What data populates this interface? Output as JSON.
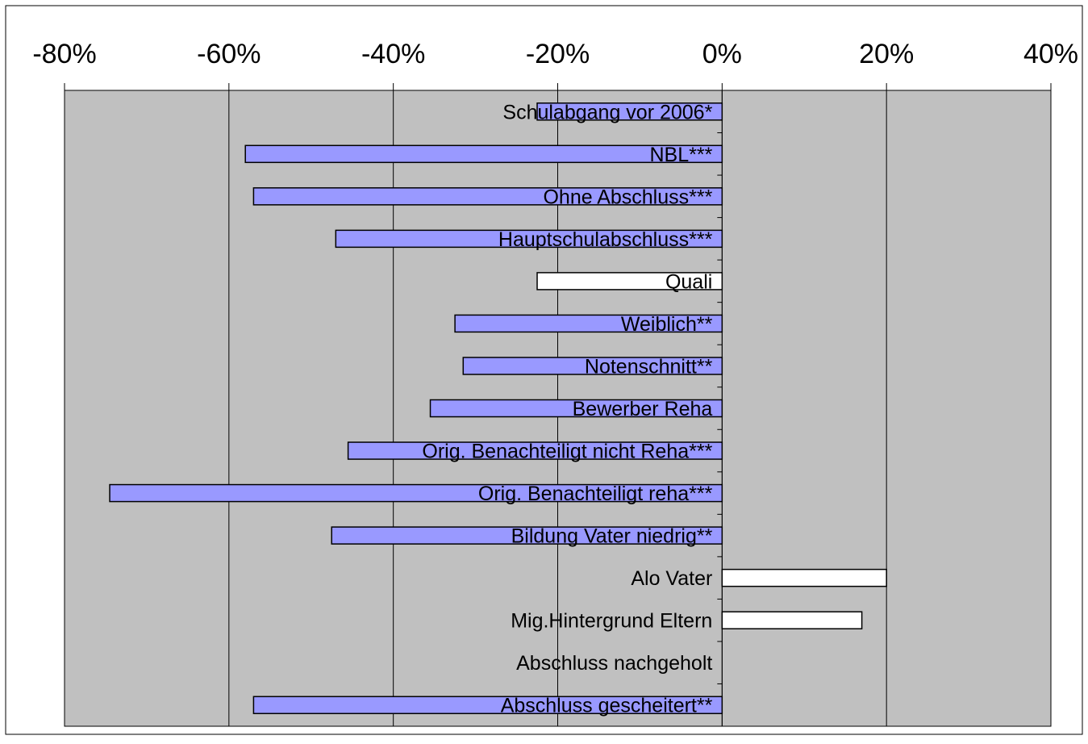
{
  "chart_data": {
    "type": "bar",
    "orientation": "horizontal",
    "title": "",
    "xlabel": "",
    "ylabel": "",
    "xlim": [
      -80,
      40
    ],
    "x_ticks": [
      -80,
      -60,
      -40,
      -20,
      0,
      20,
      40
    ],
    "x_tick_labels": [
      "-80%",
      "-60%",
      "-40%",
      "-20%",
      "0%",
      "20%",
      "40%"
    ],
    "grid": true,
    "plot_background": "#c0c0c0",
    "page_background": "#ffffff",
    "colors": {
      "significant": "#9999ff",
      "not_significant": "#ffffff",
      "edge": "#000000",
      "grid": "#000000"
    },
    "categories": [
      "Schulabgang vor 2006*",
      "NBL***",
      "Ohne Abschluss***",
      "Hauptschulabschluss***",
      "Quali",
      "Weiblich**",
      "Notenschnitt**",
      "Bewerber Reha",
      "Orig. Benachteiligt nicht Reha***",
      "Orig. Benachteiligt reha***",
      "Bildung Vater niedrig**",
      "Alo Vater",
      "Mig.Hintergrund Eltern",
      "Abschluss nachgeholt",
      "Abschluss gescheitert**"
    ],
    "values": [
      -22.5,
      -58,
      -57,
      -47,
      -22.5,
      -32.5,
      -31.5,
      -35.5,
      -45.5,
      -74.5,
      -47.5,
      20,
      17,
      0,
      -57
    ],
    "significant": [
      true,
      true,
      true,
      true,
      false,
      true,
      true,
      true,
      true,
      true,
      true,
      false,
      false,
      false,
      true
    ]
  }
}
